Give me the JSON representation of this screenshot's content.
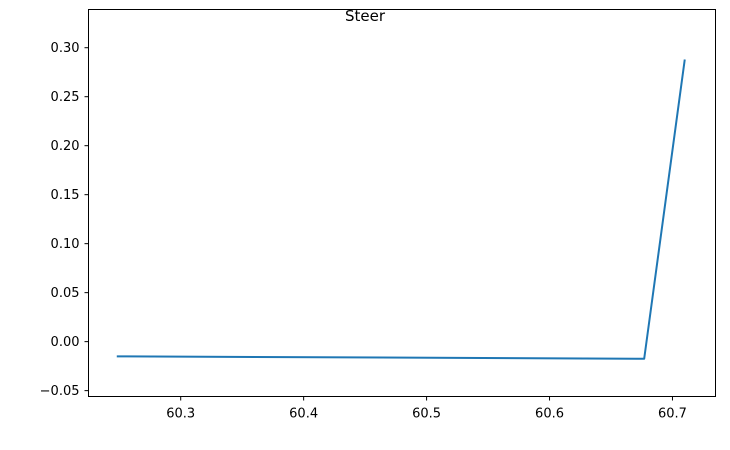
{
  "chart_data": {
    "type": "line",
    "title": "Steer",
    "xlabel": "",
    "ylabel": "",
    "xlim": [
      60.225,
      60.735
    ],
    "ylim": [
      -0.056,
      0.339
    ],
    "xticks": [
      60.3,
      60.4,
      60.5,
      60.6,
      60.7
    ],
    "xtick_labels": [
      "60.3",
      "60.4",
      "60.5",
      "60.6",
      "60.7"
    ],
    "yticks": [
      -0.05,
      0.0,
      0.05,
      0.1,
      0.15,
      0.2,
      0.25,
      0.3
    ],
    "ytick_labels": [
      "−0.05",
      "0.00",
      "0.05",
      "0.10",
      "0.15",
      "0.20",
      "0.25",
      "0.30"
    ],
    "grid": false,
    "series": [
      {
        "color": "#1f77b4",
        "x": [
          60.248,
          60.677,
          60.71
        ],
        "y": [
          -0.015,
          -0.0175,
          0.288
        ]
      }
    ]
  }
}
